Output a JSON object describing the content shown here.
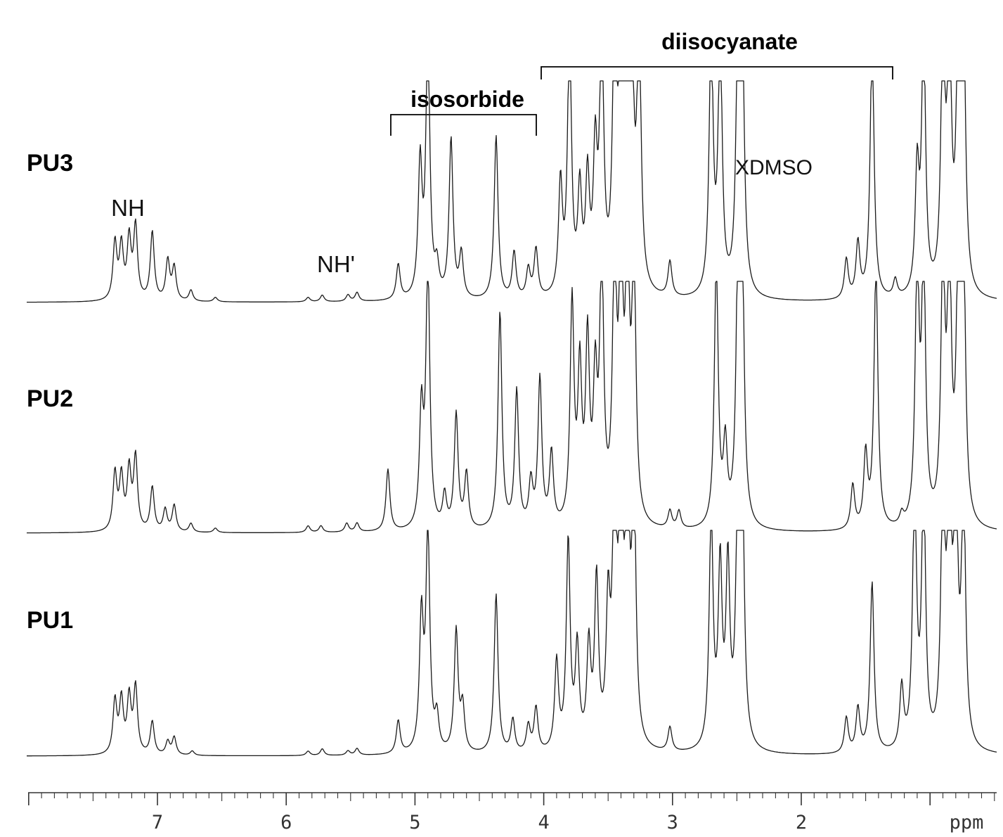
{
  "chart_data": {
    "type": "line",
    "xlabel": "ppm",
    "x_axis": {
      "range": [
        8.0,
        0.0
      ],
      "reversed": true,
      "ticks": [
        7,
        6,
        5,
        4,
        3,
        2
      ],
      "tick_labels": [
        "7",
        "6",
        "5",
        "4",
        "3",
        "2"
      ],
      "minor_tick_step": 0.1
    },
    "grid": false,
    "legend": "none",
    "series": [
      {
        "name": "PU3",
        "peaks": [
          [
            7.33,
            0.26
          ],
          [
            7.28,
            0.24
          ],
          [
            7.22,
            0.27
          ],
          [
            7.17,
            0.33
          ],
          [
            7.04,
            0.31
          ],
          [
            6.92,
            0.18
          ],
          [
            6.87,
            0.15
          ],
          [
            6.74,
            0.05
          ],
          [
            6.55,
            0.02
          ],
          [
            5.83,
            0.02
          ],
          [
            5.72,
            0.03
          ],
          [
            5.52,
            0.03
          ],
          [
            5.45,
            0.04
          ],
          [
            5.13,
            0.16
          ],
          [
            4.96,
            0.6
          ],
          [
            4.9,
            1.2
          ],
          [
            4.83,
            0.13
          ],
          [
            4.72,
            0.72
          ],
          [
            4.64,
            0.2
          ],
          [
            4.37,
            0.74
          ],
          [
            4.23,
            0.21
          ],
          [
            4.12,
            0.13
          ],
          [
            4.06,
            0.22
          ],
          [
            3.87,
            0.5
          ],
          [
            3.8,
            1.2
          ],
          [
            3.72,
            0.45
          ],
          [
            3.66,
            0.5
          ],
          [
            3.6,
            0.6
          ],
          [
            3.55,
            1.2
          ],
          [
            3.45,
            1.2
          ],
          [
            3.4,
            1.2
          ],
          [
            3.35,
            1.2
          ],
          [
            3.32,
            1.2
          ],
          [
            3.26,
            1.2
          ],
          [
            3.02,
            0.16
          ],
          [
            2.7,
            1.2
          ],
          [
            2.63,
            1.2
          ],
          [
            2.49,
            1.2
          ],
          [
            2.46,
            1.2
          ],
          [
            1.65,
            0.18
          ],
          [
            1.56,
            0.25
          ],
          [
            1.45,
            1.2
          ],
          [
            1.27,
            0.08
          ],
          [
            1.1,
            0.55
          ],
          [
            1.05,
            1.2
          ],
          [
            0.9,
            1.2
          ],
          [
            0.85,
            1.2
          ],
          [
            0.78,
            1.2
          ],
          [
            0.74,
            1.2
          ]
        ]
      },
      {
        "name": "PU2",
        "peaks": [
          [
            7.33,
            0.26
          ],
          [
            7.28,
            0.24
          ],
          [
            7.22,
            0.27
          ],
          [
            7.17,
            0.33
          ],
          [
            7.04,
            0.2
          ],
          [
            6.94,
            0.1
          ],
          [
            6.87,
            0.12
          ],
          [
            6.74,
            0.04
          ],
          [
            6.55,
            0.02
          ],
          [
            5.83,
            0.03
          ],
          [
            5.73,
            0.03
          ],
          [
            5.53,
            0.04
          ],
          [
            5.45,
            0.04
          ],
          [
            5.21,
            0.28
          ],
          [
            4.95,
            0.52
          ],
          [
            4.9,
            1.2
          ],
          [
            4.77,
            0.15
          ],
          [
            4.68,
            0.52
          ],
          [
            4.6,
            0.25
          ],
          [
            4.34,
            0.98
          ],
          [
            4.21,
            0.62
          ],
          [
            4.1,
            0.2
          ],
          [
            4.03,
            0.67
          ],
          [
            3.94,
            0.33
          ],
          [
            3.78,
            1.0
          ],
          [
            3.72,
            0.67
          ],
          [
            3.66,
            0.8
          ],
          [
            3.6,
            0.6
          ],
          [
            3.55,
            1.2
          ],
          [
            3.45,
            1.2
          ],
          [
            3.4,
            1.2
          ],
          [
            3.35,
            1.2
          ],
          [
            3.3,
            1.2
          ],
          [
            3.02,
            0.08
          ],
          [
            2.95,
            0.08
          ],
          [
            2.66,
            1.2
          ],
          [
            2.59,
            0.35
          ],
          [
            2.49,
            1.2
          ],
          [
            2.46,
            1.2
          ],
          [
            1.6,
            0.2
          ],
          [
            1.5,
            0.33
          ],
          [
            1.42,
            1.2
          ],
          [
            1.22,
            0.05
          ],
          [
            1.1,
            1.2
          ],
          [
            1.05,
            1.2
          ],
          [
            0.9,
            1.2
          ],
          [
            0.85,
            1.2
          ],
          [
            0.78,
            1.2
          ],
          [
            0.74,
            1.2
          ]
        ]
      },
      {
        "name": "PU1",
        "peaks": [
          [
            7.33,
            0.24
          ],
          [
            7.28,
            0.24
          ],
          [
            7.22,
            0.25
          ],
          [
            7.17,
            0.3
          ],
          [
            7.04,
            0.15
          ],
          [
            6.92,
            0.06
          ],
          [
            6.87,
            0.08
          ],
          [
            6.73,
            0.02
          ],
          [
            5.83,
            0.02
          ],
          [
            5.72,
            0.03
          ],
          [
            5.52,
            0.02
          ],
          [
            5.45,
            0.03
          ],
          [
            5.13,
            0.15
          ],
          [
            4.95,
            0.6
          ],
          [
            4.9,
            1.0
          ],
          [
            4.83,
            0.15
          ],
          [
            4.68,
            0.55
          ],
          [
            4.63,
            0.2
          ],
          [
            4.37,
            0.72
          ],
          [
            4.24,
            0.15
          ],
          [
            4.12,
            0.12
          ],
          [
            4.06,
            0.2
          ],
          [
            3.9,
            0.4
          ],
          [
            3.81,
            0.94
          ],
          [
            3.74,
            0.45
          ],
          [
            3.65,
            0.45
          ],
          [
            3.59,
            0.75
          ],
          [
            3.5,
            0.6
          ],
          [
            3.45,
            1.2
          ],
          [
            3.4,
            1.2
          ],
          [
            3.35,
            1.2
          ],
          [
            3.3,
            1.2
          ],
          [
            3.02,
            0.11
          ],
          [
            2.7,
            1.06
          ],
          [
            2.63,
            0.8
          ],
          [
            2.57,
            0.8
          ],
          [
            2.49,
            1.2
          ],
          [
            2.46,
            1.2
          ],
          [
            1.65,
            0.16
          ],
          [
            1.56,
            0.2
          ],
          [
            1.45,
            0.77
          ],
          [
            1.22,
            0.28
          ],
          [
            1.12,
            1.2
          ],
          [
            1.05,
            1.2
          ],
          [
            0.9,
            1.2
          ],
          [
            0.85,
            1.2
          ],
          [
            0.8,
            1.2
          ],
          [
            0.74,
            1.2
          ]
        ]
      }
    ],
    "annotations": {
      "nh": "NH",
      "nh_prime": "NH'",
      "isosorbide": "isosorbide",
      "diisocyanate": "diisocyanate",
      "dmso": "XDMSO"
    }
  }
}
